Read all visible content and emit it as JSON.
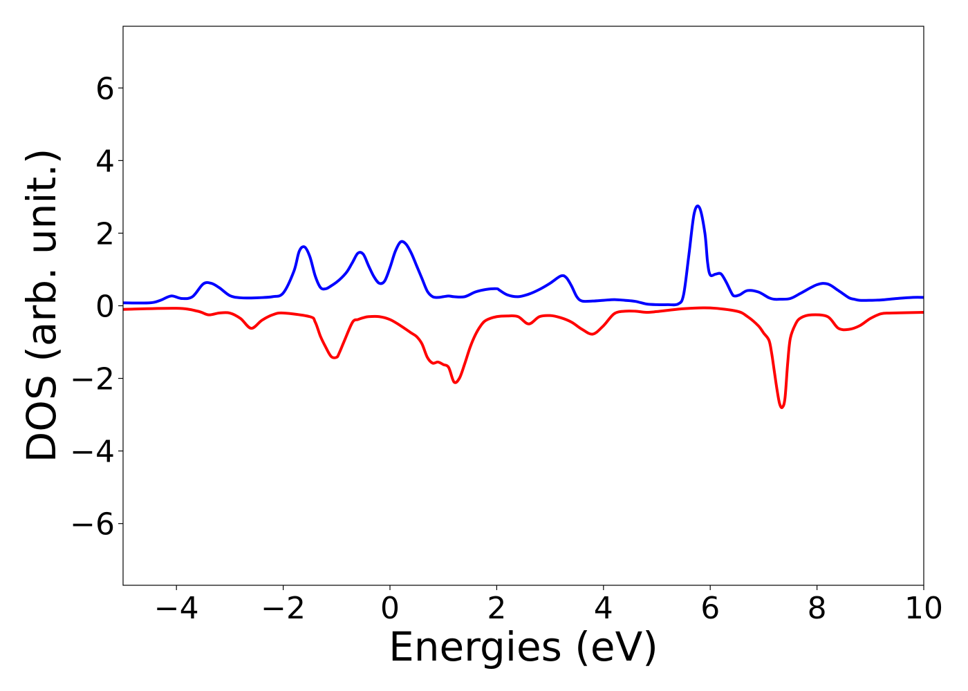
{
  "chart_data": {
    "type": "line",
    "title": "",
    "xlabel": "Energies (eV)",
    "ylabel": "DOS (arb. unit.)",
    "xlim": [
      -5,
      10
    ],
    "ylim": [
      -7.7,
      7.7
    ],
    "x_ticks": [
      -4,
      -2,
      0,
      2,
      4,
      6,
      8,
      10
    ],
    "x_tick_labels": [
      "−4",
      "−2",
      "0",
      "2",
      "4",
      "6",
      "8",
      "10"
    ],
    "y_ticks": [
      6,
      4,
      2,
      0,
      -2,
      -4,
      -6
    ],
    "y_tick_labels": [
      "6",
      "4",
      "2",
      "0",
      "−2",
      "−4",
      "−6"
    ],
    "grid": false,
    "legend": "none",
    "series": [
      {
        "color": "#0000ff",
        "x": [
          -5.0,
          -4.5,
          -4.3,
          -4.1,
          -3.9,
          -3.7,
          -3.5,
          -3.35,
          -3.2,
          -3.0,
          -2.8,
          -2.5,
          -2.2,
          -2.0,
          -1.8,
          -1.7,
          -1.6,
          -1.5,
          -1.4,
          -1.3,
          -1.2,
          -1.1,
          -1.0,
          -0.9,
          -0.8,
          -0.7,
          -0.6,
          -0.5,
          -0.4,
          -0.3,
          -0.2,
          -0.1,
          0.0,
          0.1,
          0.2,
          0.3,
          0.4,
          0.5,
          0.6,
          0.7,
          0.8,
          0.9,
          1.0,
          1.1,
          1.2,
          1.4,
          1.6,
          1.8,
          2.0,
          2.05,
          2.2,
          2.4,
          2.6,
          2.8,
          3.0,
          3.2,
          3.3,
          3.4,
          3.5,
          3.6,
          3.8,
          4.0,
          4.2,
          4.4,
          4.6,
          4.8,
          5.0,
          5.2,
          5.4,
          5.5,
          5.6,
          5.7,
          5.8,
          5.9,
          5.95,
          6.0,
          6.1,
          6.2,
          6.3,
          6.4,
          6.45,
          6.55,
          6.7,
          6.9,
          7.1,
          7.2,
          7.3,
          7.5,
          7.7,
          8.0,
          8.2,
          8.4,
          8.6,
          8.7,
          8.8,
          9.0,
          9.2,
          9.5,
          9.8,
          10.0
        ],
        "y": [
          0.08,
          0.08,
          0.15,
          0.27,
          0.2,
          0.25,
          0.6,
          0.62,
          0.5,
          0.28,
          0.22,
          0.22,
          0.25,
          0.35,
          0.95,
          1.5,
          1.62,
          1.35,
          0.82,
          0.5,
          0.47,
          0.55,
          0.65,
          0.78,
          0.95,
          1.2,
          1.45,
          1.42,
          1.1,
          0.8,
          0.62,
          0.68,
          1.05,
          1.5,
          1.76,
          1.7,
          1.45,
          1.1,
          0.75,
          0.4,
          0.25,
          0.23,
          0.25,
          0.27,
          0.25,
          0.25,
          0.38,
          0.45,
          0.47,
          0.43,
          0.3,
          0.25,
          0.32,
          0.45,
          0.62,
          0.82,
          0.78,
          0.55,
          0.25,
          0.13,
          0.13,
          0.15,
          0.17,
          0.15,
          0.12,
          0.05,
          0.03,
          0.03,
          0.05,
          0.3,
          1.4,
          2.55,
          2.7,
          2.0,
          1.2,
          0.85,
          0.87,
          0.88,
          0.65,
          0.35,
          0.27,
          0.3,
          0.42,
          0.38,
          0.22,
          0.18,
          0.18,
          0.2,
          0.35,
          0.58,
          0.6,
          0.42,
          0.22,
          0.18,
          0.15,
          0.15,
          0.16,
          0.2,
          0.23,
          0.23
        ]
      },
      {
        "color": "#ff0000",
        "x": [
          -5.0,
          -4.0,
          -3.6,
          -3.4,
          -3.2,
          -3.0,
          -2.8,
          -2.6,
          -2.4,
          -2.2,
          -2.0,
          -1.5,
          -1.4,
          -1.3,
          -1.2,
          -1.1,
          -1.0,
          -0.95,
          -0.85,
          -0.7,
          -0.6,
          -0.5,
          -0.4,
          -0.2,
          0.0,
          0.2,
          0.4,
          0.5,
          0.6,
          0.7,
          0.8,
          0.9,
          1.0,
          1.1,
          1.2,
          1.3,
          1.4,
          1.5,
          1.6,
          1.7,
          1.8,
          2.0,
          2.2,
          2.4,
          2.6,
          2.8,
          3.0,
          3.2,
          3.4,
          3.6,
          3.8,
          4.0,
          4.2,
          4.4,
          4.6,
          4.8,
          5.0,
          5.5,
          6.0,
          6.5,
          6.7,
          6.9,
          7.0,
          7.1,
          7.15,
          7.2,
          7.25,
          7.3,
          7.35,
          7.4,
          7.45,
          7.5,
          7.6,
          7.7,
          7.9,
          8.2,
          8.4,
          8.6,
          8.8,
          9.0,
          9.2,
          9.4,
          10.0
        ],
        "y": [
          -0.1,
          -0.07,
          -0.15,
          -0.25,
          -0.2,
          -0.2,
          -0.35,
          -0.62,
          -0.4,
          -0.25,
          -0.2,
          -0.3,
          -0.45,
          -0.85,
          -1.15,
          -1.4,
          -1.42,
          -1.3,
          -0.95,
          -0.45,
          -0.38,
          -0.33,
          -0.3,
          -0.3,
          -0.38,
          -0.55,
          -0.75,
          -0.85,
          -1.05,
          -1.42,
          -1.58,
          -1.55,
          -1.62,
          -1.7,
          -2.1,
          -2.0,
          -1.6,
          -1.15,
          -0.8,
          -0.55,
          -0.4,
          -0.3,
          -0.28,
          -0.3,
          -0.5,
          -0.3,
          -0.27,
          -0.33,
          -0.45,
          -0.65,
          -0.78,
          -0.55,
          -0.22,
          -0.15,
          -0.15,
          -0.18,
          -0.16,
          -0.08,
          -0.06,
          -0.15,
          -0.3,
          -0.55,
          -0.75,
          -0.95,
          -1.3,
          -1.8,
          -2.3,
          -2.7,
          -2.8,
          -2.55,
          -1.6,
          -0.9,
          -0.5,
          -0.33,
          -0.25,
          -0.3,
          -0.62,
          -0.65,
          -0.55,
          -0.35,
          -0.22,
          -0.2,
          -0.18
        ]
      }
    ]
  }
}
